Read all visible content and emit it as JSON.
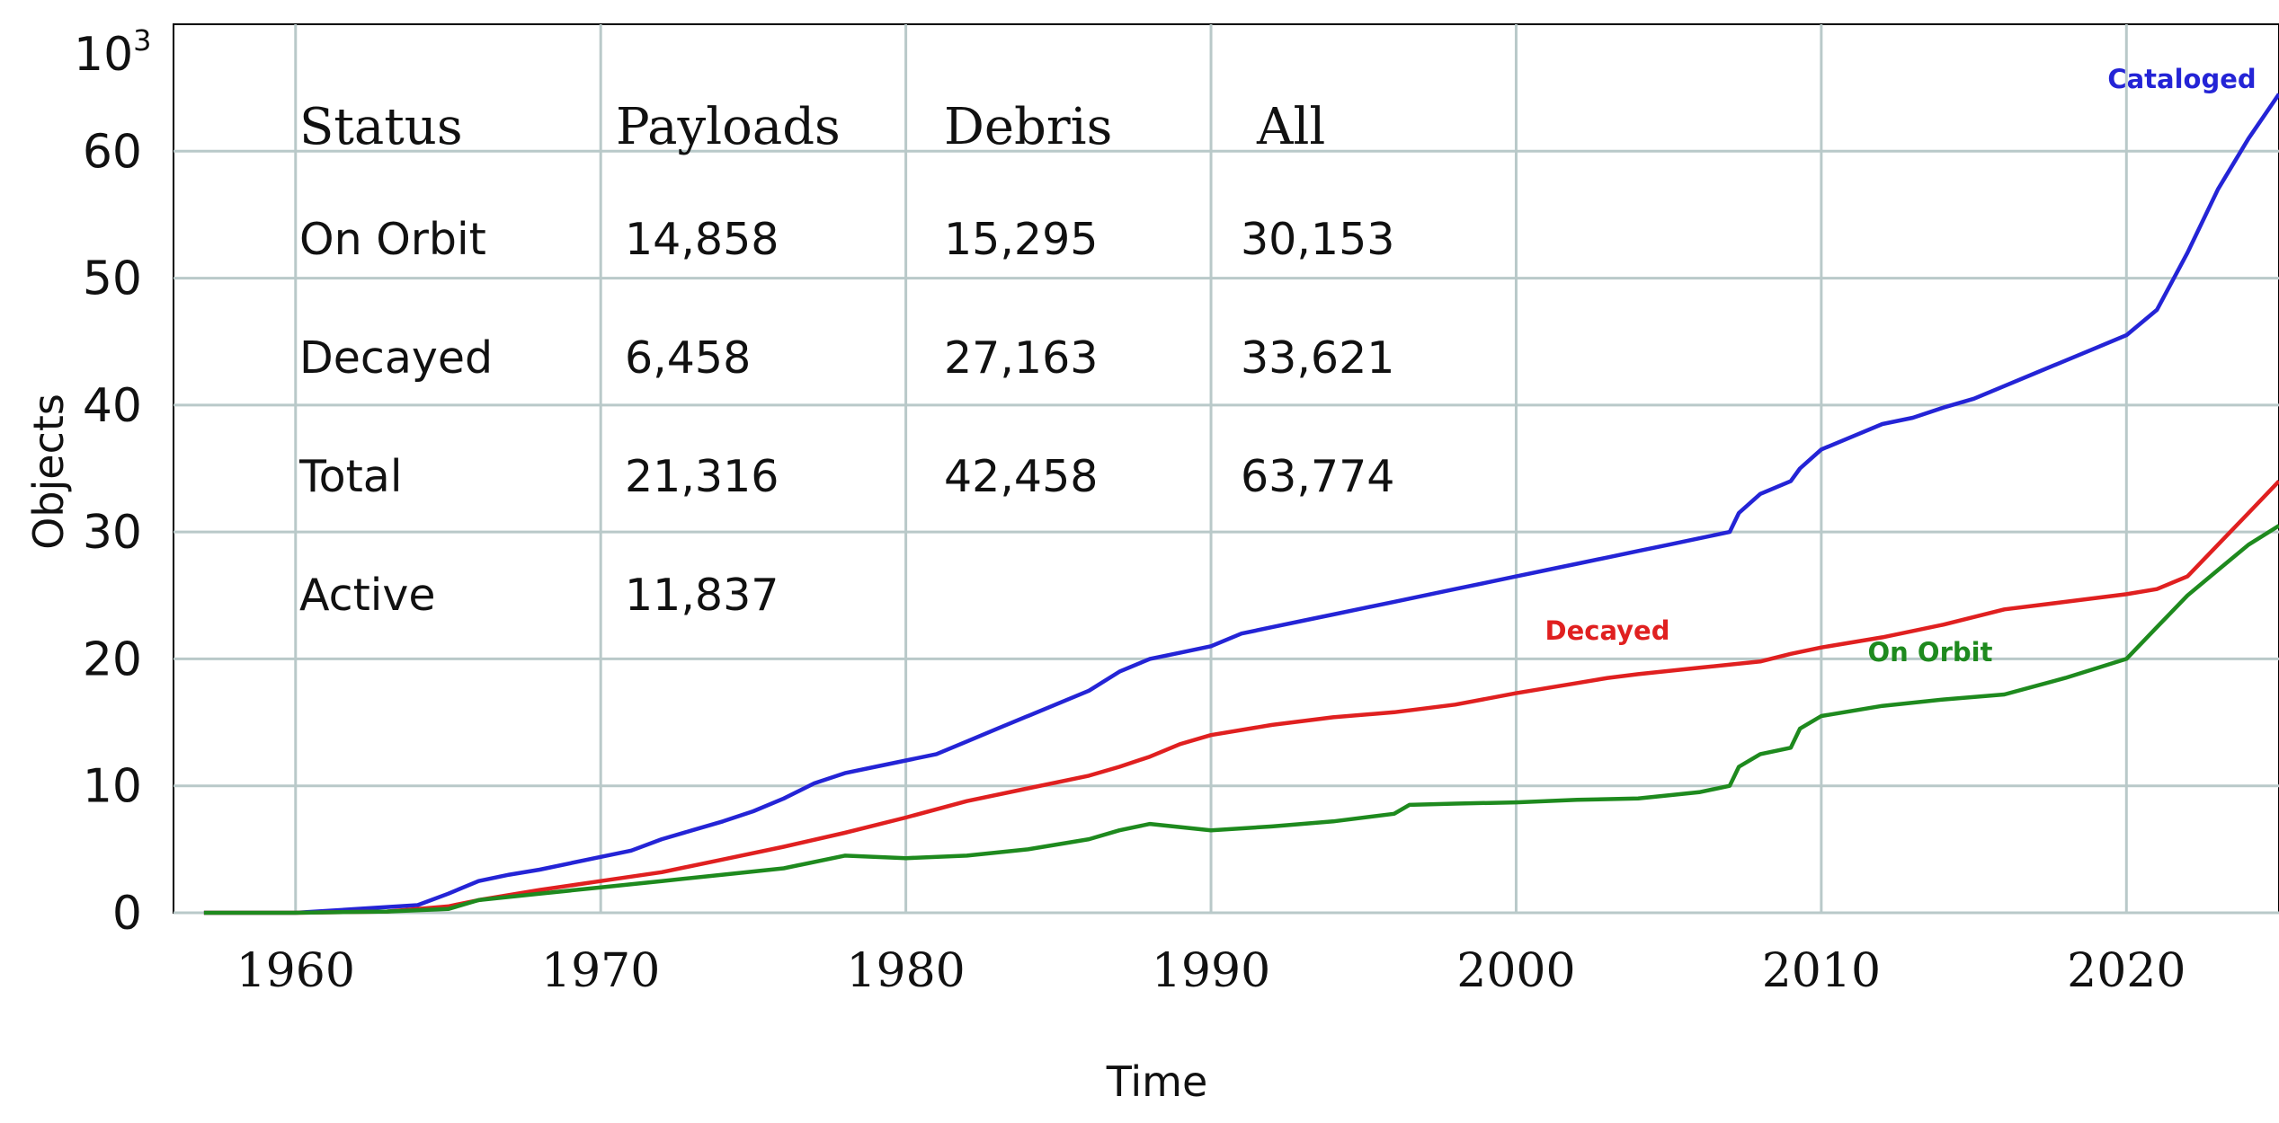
{
  "chart_data": {
    "type": "line",
    "xlabel": "Time",
    "ylabel": "Objects",
    "ylabel_unit": "10",
    "ylabel_exp": "3",
    "xlim": [
      1956,
      2025
    ],
    "ylim": [
      0,
      70
    ],
    "x_ticks": [
      1960,
      1970,
      1980,
      1990,
      2000,
      2010,
      2020
    ],
    "y_ticks": [
      0,
      10,
      20,
      30,
      40,
      50,
      60
    ],
    "grid": true,
    "series": [
      {
        "name": "Cataloged",
        "color": "#2424d6",
        "x": [
          1957,
          1960,
          1962,
          1964,
          1965,
          1966,
          1967,
          1968,
          1969,
          1970,
          1971,
          1972,
          1973,
          1974,
          1975,
          1976,
          1977,
          1978,
          1979,
          1980,
          1981,
          1982,
          1983,
          1984,
          1985,
          1986,
          1987,
          1988,
          1989,
          1990,
          1991,
          1992,
          1993,
          1994,
          1995,
          1996,
          1997,
          1998,
          1999,
          2000,
          2001,
          2002,
          2003,
          2004,
          2005,
          2006,
          2007,
          2007.3,
          2008,
          2009,
          2009.3,
          2010,
          2011,
          2012,
          2013,
          2014,
          2015,
          2016,
          2017,
          2018,
          2019,
          2020,
          2021,
          2022,
          2023,
          2024,
          2025
        ],
        "y": [
          0,
          0,
          0.3,
          0.6,
          1.5,
          2.5,
          3.0,
          3.4,
          3.9,
          4.4,
          4.9,
          5.8,
          6.5,
          7.2,
          8.0,
          9.0,
          10.2,
          11.0,
          11.5,
          12.0,
          12.5,
          13.5,
          14.5,
          15.5,
          16.5,
          17.5,
          19.0,
          20.0,
          20.5,
          21.0,
          22.0,
          22.5,
          23.0,
          23.5,
          24.0,
          24.5,
          25.0,
          25.5,
          26.0,
          26.5,
          27.0,
          27.5,
          28.0,
          28.5,
          29.0,
          29.5,
          30.0,
          31.5,
          33.0,
          34.0,
          35.0,
          36.5,
          37.5,
          38.5,
          39.0,
          39.8,
          40.5,
          41.5,
          42.5,
          43.5,
          44.5,
          45.5,
          47.5,
          52.0,
          57.0,
          61.0,
          64.5
        ]
      },
      {
        "name": "Decayed",
        "color": "#e02020",
        "x": [
          1957,
          1960,
          1963,
          1965,
          1966,
          1968,
          1970,
          1972,
          1974,
          1976,
          1978,
          1980,
          1982,
          1984,
          1986,
          1987,
          1988,
          1989,
          1990,
          1992,
          1994,
          1996,
          1998,
          2000,
          2002,
          2003,
          2004,
          2006,
          2008,
          2009,
          2010,
          2012,
          2014,
          2016,
          2018,
          2020,
          2021,
          2022,
          2023,
          2024,
          2025
        ],
        "y": [
          0,
          0,
          0.1,
          0.5,
          1.0,
          1.8,
          2.5,
          3.2,
          4.2,
          5.2,
          6.3,
          7.5,
          8.8,
          9.8,
          10.8,
          11.5,
          12.3,
          13.3,
          14.0,
          14.8,
          15.4,
          15.8,
          16.4,
          17.3,
          18.1,
          18.5,
          18.8,
          19.3,
          19.8,
          20.4,
          20.9,
          21.7,
          22.7,
          23.9,
          24.5,
          25.1,
          25.5,
          26.5,
          29.0,
          31.5,
          34.0
        ]
      },
      {
        "name": "On Orbit",
        "color": "#1e8a1e",
        "x": [
          1957,
          1960,
          1963,
          1965,
          1966,
          1968,
          1970,
          1972,
          1974,
          1976,
          1978,
          1980,
          1982,
          1984,
          1986,
          1987,
          1988,
          1990,
          1992,
          1994,
          1996,
          1996.5,
          1998,
          2000,
          2002,
          2004,
          2006,
          2007,
          2007.3,
          2008,
          2009,
          2009.3,
          2010,
          2012,
          2014,
          2016,
          2018,
          2020,
          2021,
          2022,
          2023,
          2024,
          2025
        ],
        "y": [
          0,
          0,
          0.1,
          0.3,
          1.0,
          1.5,
          2.0,
          2.5,
          3.0,
          3.5,
          4.5,
          4.3,
          4.5,
          5.0,
          5.8,
          6.5,
          7.0,
          6.5,
          6.8,
          7.2,
          7.8,
          8.5,
          8.6,
          8.7,
          8.9,
          9.0,
          9.5,
          10.0,
          11.5,
          12.5,
          13.0,
          14.5,
          15.5,
          16.3,
          16.8,
          17.2,
          18.5,
          20.0,
          22.5,
          25.0,
          27.0,
          29.0,
          30.5
        ]
      }
    ],
    "table": {
      "headers": [
        "Status",
        "Payloads",
        "Debris",
        "All"
      ],
      "rows": [
        [
          "On Orbit",
          "14,858",
          "15,295",
          "30,153"
        ],
        [
          "Decayed",
          "6,458",
          "27,163",
          "33,621"
        ],
        [
          "Total",
          "21,316",
          "42,458",
          "63,774"
        ],
        [
          "Active",
          "11,837",
          "",
          ""
        ]
      ]
    }
  }
}
